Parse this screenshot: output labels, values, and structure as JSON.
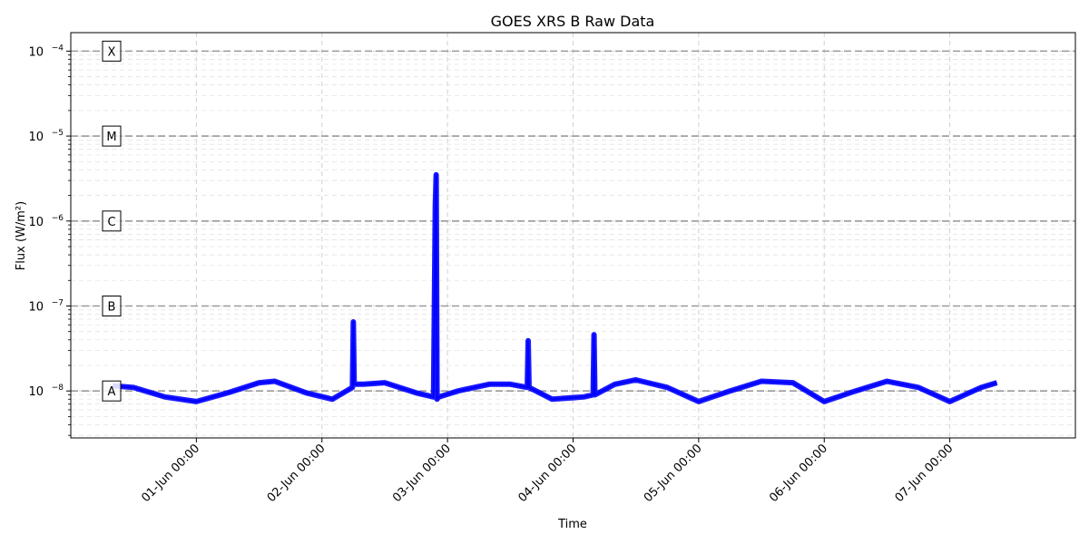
{
  "chart_data": {
    "type": "line",
    "title": "GOES XRS B Raw Data",
    "xlabel": "Time",
    "ylabel": "Flux (W/m²)",
    "y_scale": "log",
    "ylim": [
      2.8e-09,
      0.000165
    ],
    "xlim": [
      "2025-05-31T00:00",
      "2025-06-08T00:00"
    ],
    "x_note_dates": "x values are ISO datetimes; only day-month shown on ticks",
    "xticks": [
      {
        "t": "2025-06-01T00:00",
        "label": "01-Jun 00:00"
      },
      {
        "t": "2025-06-02T00:00",
        "label": "02-Jun 00:00"
      },
      {
        "t": "2025-06-03T00:00",
        "label": "03-Jun 00:00"
      },
      {
        "t": "2025-06-04T00:00",
        "label": "04-Jun 00:00"
      },
      {
        "t": "2025-06-05T00:00",
        "label": "05-Jun 00:00"
      },
      {
        "t": "2025-06-06T00:00",
        "label": "06-Jun 00:00"
      },
      {
        "t": "2025-06-07T00:00",
        "label": "07-Jun 00:00"
      }
    ],
    "yticks": [
      {
        "v": 1e-08,
        "base": "10",
        "exp": "−8"
      },
      {
        "v": 1e-07,
        "base": "10",
        "exp": "−7"
      },
      {
        "v": 1e-06,
        "base": "10",
        "exp": "−6"
      },
      {
        "v": 1e-05,
        "base": "10",
        "exp": "−5"
      },
      {
        "v": 0.0001,
        "base": "10",
        "exp": "−4"
      }
    ],
    "flare_classes": [
      {
        "label": "A",
        "v": 1e-08
      },
      {
        "label": "B",
        "v": 1e-07
      },
      {
        "label": "C",
        "v": 1e-06
      },
      {
        "label": "M",
        "v": 1e-05
      },
      {
        "label": "X",
        "v": 0.0001
      }
    ],
    "grid": true,
    "series": [
      {
        "color": "#0000ff",
        "x": [
          "2025-05-31T08:00",
          "2025-05-31T12:00",
          "2025-05-31T18:00",
          "2025-06-01T00:00",
          "2025-06-01T06:00",
          "2025-06-01T12:00",
          "2025-06-01T15:00",
          "2025-06-01T21:00",
          "2025-06-02T02:00",
          "2025-06-02T05:50",
          "2025-06-02T06:00",
          "2025-06-02T06:10",
          "2025-06-02T08:00",
          "2025-06-02T12:00",
          "2025-06-02T18:00",
          "2025-06-02T21:20",
          "2025-06-02T21:40",
          "2025-06-02T21:50",
          "2025-06-02T22:00",
          "2025-06-02T22:20",
          "2025-06-03T02:00",
          "2025-06-03T08:00",
          "2025-06-03T12:00",
          "2025-06-03T15:15",
          "2025-06-03T15:25",
          "2025-06-03T15:35",
          "2025-06-03T20:00",
          "2025-06-04T02:00",
          "2025-06-04T03:50",
          "2025-06-04T04:00",
          "2025-06-04T04:10",
          "2025-06-04T08:00",
          "2025-06-04T12:00",
          "2025-06-04T18:00",
          "2025-06-05T00:00",
          "2025-06-05T06:00",
          "2025-06-05T12:00",
          "2025-06-05T18:00",
          "2025-06-06T00:00",
          "2025-06-06T06:00",
          "2025-06-06T12:00",
          "2025-06-06T18:00",
          "2025-06-07T00:00",
          "2025-06-07T06:00",
          "2025-06-07T09:00"
        ],
        "y": [
          1.15e-08,
          1.1e-08,
          8.5e-09,
          7.5e-09,
          9.5e-09,
          1.25e-08,
          1.3e-08,
          9.5e-09,
          8e-09,
          1.1e-08,
          6.5e-08,
          1.2e-08,
          1.2e-08,
          1.25e-08,
          9.5e-09,
          8.5e-09,
          1.5e-06,
          3.5e-06,
          8e-09,
          8.5e-09,
          1e-08,
          1.2e-08,
          1.2e-08,
          1.1e-08,
          3.9e-08,
          1.1e-08,
          8e-09,
          8.5e-09,
          9e-09,
          4.6e-08,
          9e-09,
          1.2e-08,
          1.35e-08,
          1.1e-08,
          7.5e-09,
          1e-08,
          1.3e-08,
          1.25e-08,
          7.5e-09,
          1e-08,
          1.3e-08,
          1.1e-08,
          7.5e-09,
          1.1e-08,
          1.25e-08
        ]
      }
    ]
  }
}
